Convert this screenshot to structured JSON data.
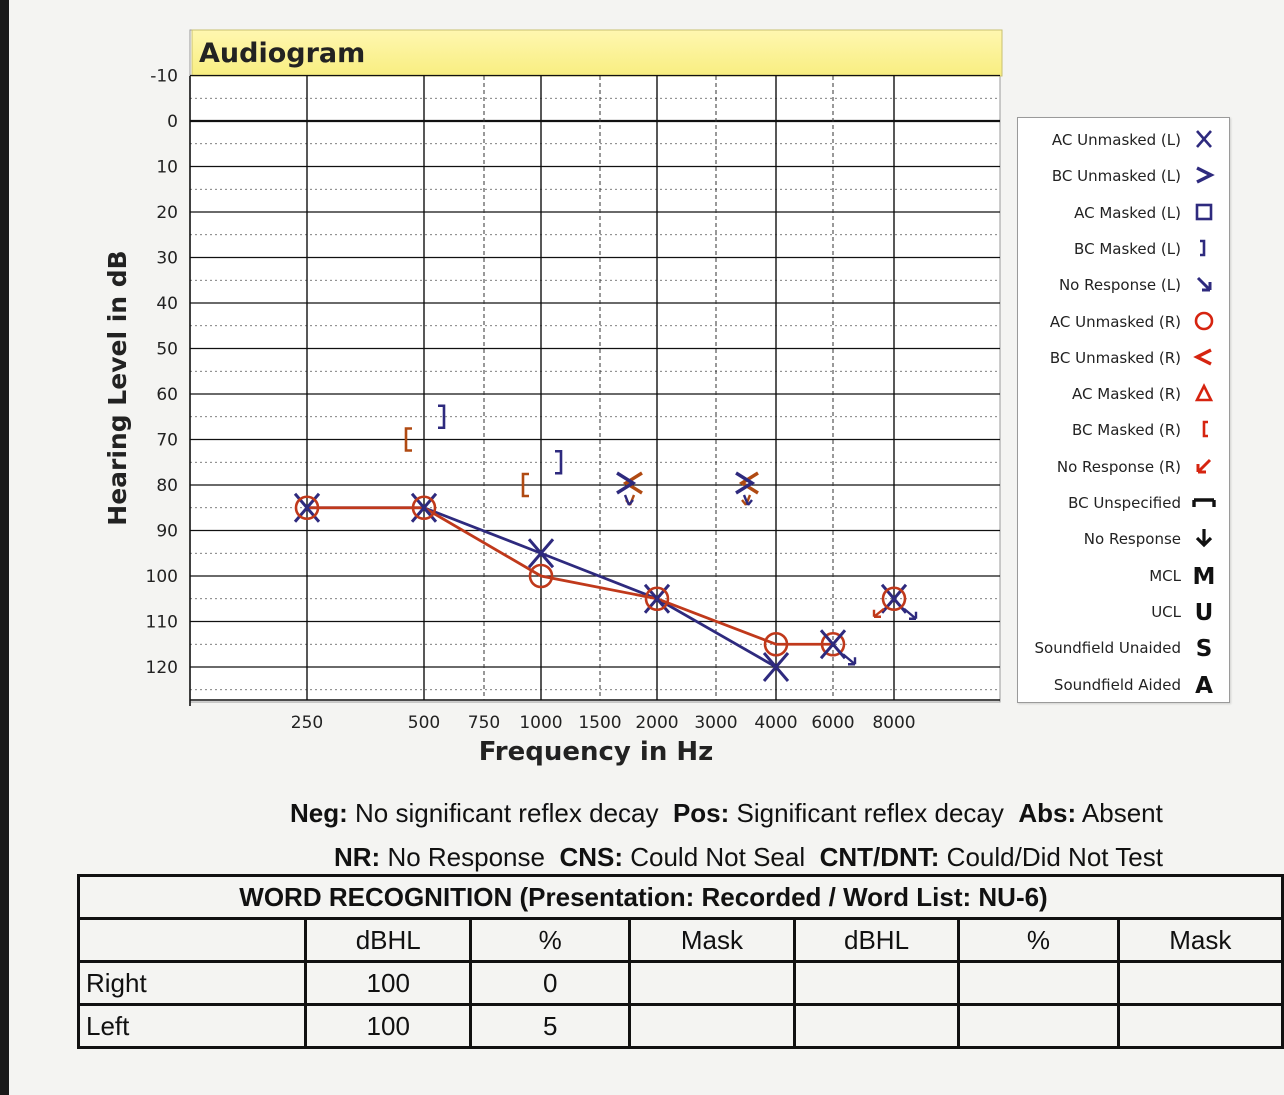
{
  "chart_data": {
    "type": "line",
    "title": "Audiogram",
    "xlabel": "Frequency in Hz",
    "ylabel": "Hearing Level in dB",
    "x_ticks": [
      "250",
      "500",
      "750",
      "1000",
      "1500",
      "2000",
      "3000",
      "4000",
      "6000",
      "8000"
    ],
    "y_ticks": [
      "-10",
      "0",
      "10",
      "20",
      "30",
      "40",
      "50",
      "60",
      "70",
      "80",
      "90",
      "100",
      "110",
      "120"
    ],
    "ylim": [
      -10,
      125
    ],
    "y_inverted": true,
    "grid": true,
    "series": [
      {
        "key": "left_ac",
        "color": "#2e2a7e",
        "marker": "X",
        "points": [
          {
            "x": "250",
            "y": 85
          },
          {
            "x": "500",
            "y": 85
          },
          {
            "x": "1000",
            "y": 95
          },
          {
            "x": "2000",
            "y": 105
          },
          {
            "x": "4000",
            "y": 120
          }
        ]
      },
      {
        "key": "right_ac",
        "color": "#c0391b",
        "marker": "O",
        "points": [
          {
            "x": "250",
            "y": 85
          },
          {
            "x": "500",
            "y": 85
          },
          {
            "x": "1000",
            "y": 100
          },
          {
            "x": "2000",
            "y": 105
          },
          {
            "x": "4000",
            "y": 115
          },
          {
            "x": "6000",
            "y": 115
          }
        ]
      }
    ],
    "extra_symbols": [
      {
        "kind": "left_ac",
        "x": "6000",
        "y": 115,
        "no_response": true
      },
      {
        "kind": "left_ac",
        "x": "8000",
        "y": 105,
        "no_response": true
      },
      {
        "kind": "right_ac",
        "x": "8000",
        "y": 105,
        "no_response": true
      },
      {
        "kind": "right_bc_masked",
        "x": "500",
        "y": 70
      },
      {
        "kind": "left_bc_masked",
        "x": "500",
        "y": 65
      },
      {
        "kind": "right_bc_masked",
        "x": "1000",
        "y": 80
      },
      {
        "kind": "left_bc_masked",
        "x": "1000",
        "y": 75
      },
      {
        "kind": "right_bc_unmasked",
        "x": "1500",
        "y": 80,
        "no_response": true
      },
      {
        "kind": "left_bc_unmasked",
        "x": "2000",
        "y": 80,
        "no_response": true
      },
      {
        "kind": "right_bc_unmasked",
        "x": "3000",
        "y": 80,
        "no_response": true
      },
      {
        "kind": "left_bc_unmasked",
        "x": "4000",
        "y": 80,
        "no_response": true
      }
    ],
    "legend_position": "right",
    "legend": [
      {
        "label": "AC Unmasked (L)",
        "symbol": "x",
        "color": "#2e2a7e"
      },
      {
        "label": "BC Unmasked (L)",
        "symbol": "gt",
        "color": "#2e2a7e"
      },
      {
        "label": "AC Masked (L)",
        "symbol": "square",
        "color": "#2e2a7e"
      },
      {
        "label": "BC Masked (L)",
        "symbol": "rbracket",
        "color": "#2e2a7e"
      },
      {
        "label": "No Response (L)",
        "symbol": "arrow-dr",
        "color": "#2e2a7e"
      },
      {
        "label": "AC Unmasked (R)",
        "symbol": "circle",
        "color": "#d62410"
      },
      {
        "label": "BC Unmasked (R)",
        "symbol": "lt",
        "color": "#d62410"
      },
      {
        "label": "AC Masked (R)",
        "symbol": "triangle",
        "color": "#d62410"
      },
      {
        "label": "BC Masked (R)",
        "symbol": "lbracket",
        "color": "#d62410"
      },
      {
        "label": "No Response (R)",
        "symbol": "arrow-dl",
        "color": "#d62410"
      },
      {
        "label": "BC Unspecified",
        "symbol": "bc-unspec",
        "color": "#111111"
      },
      {
        "label": "No Response",
        "symbol": "arrow-down",
        "color": "#111111"
      },
      {
        "label": "MCL",
        "symbol": "text",
        "text": "M",
        "color": "#111111"
      },
      {
        "label": "UCL",
        "symbol": "text",
        "text": "U",
        "color": "#111111"
      },
      {
        "label": "Soundfield Unaided",
        "symbol": "text",
        "text": "S",
        "color": "#111111"
      },
      {
        "label": "Soundfield Aided",
        "symbol": "text",
        "text": "A",
        "color": "#111111"
      }
    ]
  },
  "notes": {
    "line1": [
      {
        "abbr": "Neg:",
        "text": " No significant reflex decay  "
      },
      {
        "abbr": "Pos:",
        "text": " Significant reflex decay  "
      },
      {
        "abbr": "Abs:",
        "text": " Absent"
      }
    ],
    "line2": [
      {
        "abbr": "NR:",
        "text": " No Response  "
      },
      {
        "abbr": "CNS:",
        "text": " Could Not Seal  "
      },
      {
        "abbr": "CNT/DNT:",
        "text": " Could/Did Not Test"
      }
    ]
  },
  "word_recognition": {
    "title": "WORD RECOGNITION (Presentation: Recorded / Word List: NU-6)",
    "headers": [
      "",
      "dBHL",
      "%",
      "Mask",
      "dBHL",
      "%",
      "Mask"
    ],
    "rows": [
      {
        "label": "Right",
        "cells": [
          "100",
          "0",
          "",
          "",
          "",
          ""
        ]
      },
      {
        "label": "Left",
        "cells": [
          "100",
          "5",
          "",
          "",
          "",
          ""
        ]
      }
    ]
  }
}
